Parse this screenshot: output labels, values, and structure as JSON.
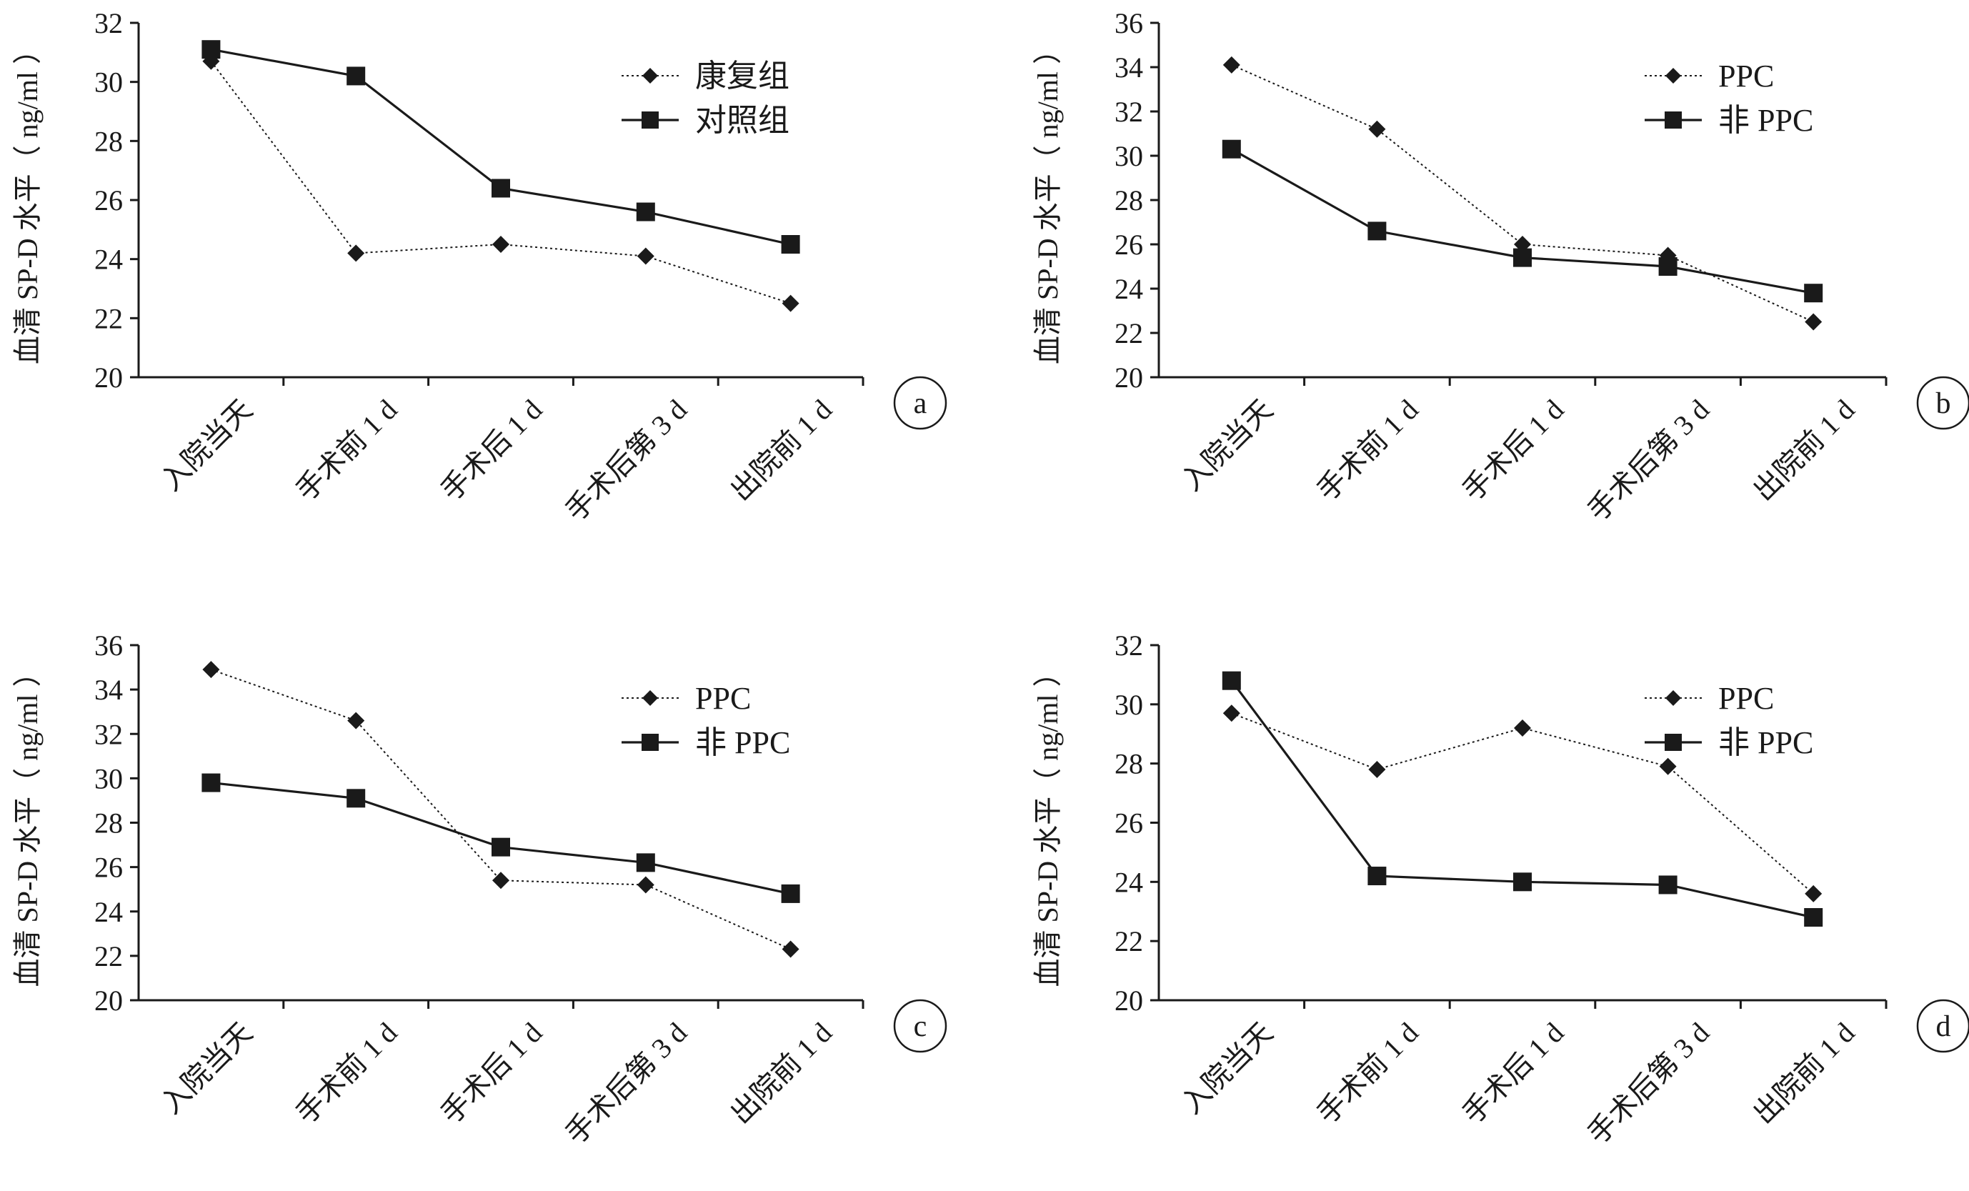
{
  "colors": {
    "ink": "#1a1a1a",
    "background": "#ffffff"
  },
  "chart_data": [
    {
      "type": "line",
      "panel": "a",
      "ylabel": "血清 SP-D 水平（ ng/ml ）",
      "categories": [
        "入院当天",
        "手术前 1 d",
        "手术后 1 d",
        "手术后第 3 d",
        "出院前 1 d"
      ],
      "ylim": [
        20,
        32
      ],
      "yticks": [
        20,
        22,
        24,
        26,
        28,
        30,
        32
      ],
      "grid": false,
      "legend_position": "top-right",
      "series": [
        {
          "name": "康复组",
          "marker": "diamond",
          "line": "dotted",
          "values": [
            30.7,
            24.2,
            24.5,
            24.1,
            22.5
          ]
        },
        {
          "name": "对照组",
          "marker": "square",
          "line": "solid",
          "values": [
            31.1,
            30.2,
            26.4,
            25.6,
            24.5
          ]
        }
      ]
    },
    {
      "type": "line",
      "panel": "b",
      "ylabel": "血清 SP-D 水平（ ng/ml ）",
      "categories": [
        "入院当天",
        "手术前 1 d",
        "手术后 1 d",
        "手术后第 3 d",
        "出院前 1 d"
      ],
      "ylim": [
        20,
        36
      ],
      "yticks": [
        20,
        22,
        24,
        26,
        28,
        30,
        32,
        34,
        36
      ],
      "grid": false,
      "legend_position": "top-right",
      "series": [
        {
          "name": "PPC",
          "marker": "diamond",
          "line": "dotted",
          "values": [
            34.1,
            31.2,
            26.0,
            25.5,
            22.5
          ]
        },
        {
          "name": "非 PPC",
          "marker": "square",
          "line": "solid",
          "values": [
            30.3,
            26.6,
            25.4,
            25.0,
            23.8
          ]
        }
      ]
    },
    {
      "type": "line",
      "panel": "c",
      "ylabel": "血清 SP-D 水平（ ng/ml ）",
      "categories": [
        "入院当天",
        "手术前 1 d",
        "手术后 1 d",
        "手术后第 3 d",
        "出院前 1 d"
      ],
      "ylim": [
        20,
        36
      ],
      "yticks": [
        20,
        22,
        24,
        26,
        28,
        30,
        32,
        34,
        36
      ],
      "grid": false,
      "legend_position": "top-right",
      "series": [
        {
          "name": "PPC",
          "marker": "diamond",
          "line": "dotted",
          "values": [
            34.9,
            32.6,
            25.4,
            25.2,
            22.3
          ]
        },
        {
          "name": "非 PPC",
          "marker": "square",
          "line": "solid",
          "values": [
            29.8,
            29.1,
            26.9,
            26.2,
            24.8
          ]
        }
      ]
    },
    {
      "type": "line",
      "panel": "d",
      "ylabel": "血清 SP-D 水平（ ng/ml ）",
      "categories": [
        "入院当天",
        "手术前 1 d",
        "手术后 1 d",
        "手术后第 3 d",
        "出院前 1 d"
      ],
      "ylim": [
        20,
        32
      ],
      "yticks": [
        20,
        22,
        24,
        26,
        28,
        30,
        32
      ],
      "grid": false,
      "legend_position": "top-right",
      "series": [
        {
          "name": "PPC",
          "marker": "diamond",
          "line": "dotted",
          "values": [
            29.7,
            27.8,
            29.2,
            27.9,
            23.6
          ]
        },
        {
          "name": "非 PPC",
          "marker": "square",
          "line": "solid",
          "values": [
            30.8,
            24.2,
            24.0,
            23.9,
            22.8
          ]
        }
      ]
    }
  ]
}
